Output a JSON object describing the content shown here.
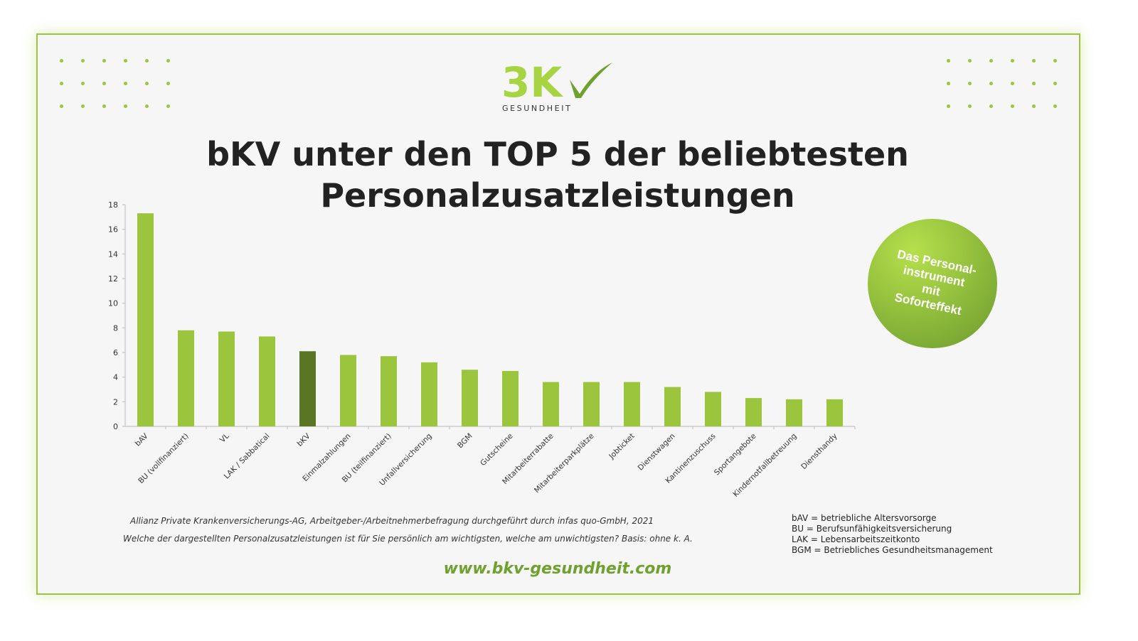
{
  "logo": {
    "text": "BKV",
    "subtitle": "GESUNDHEIT"
  },
  "title_line1": "bKV unter den TOP 5 der beliebtesten",
  "title_line2": "Personalzusatzleistungen",
  "badge": {
    "lines": [
      "Das Personal-",
      "instrument",
      "mit",
      "Soforteffekt"
    ]
  },
  "source": "Allianz Private Krankenversicherungs-AG, Arbeitgeber-/Arbeitnehmerbefragung durchgeführt durch infas quo-GmbH, 2021",
  "question": "Welche der dargestellten Personalzusatzleistungen ist für Sie persönlich am wichtigsten, welche am unwichtigsten? Basis: ohne k. A.",
  "abbreviations": [
    "bAV = betriebliche Altersvorsorge",
    "BU = Berufsunfähigkeitsversicherung",
    "LAK = Lebensarbeitszeitkonto",
    "BGM = Betriebliches Gesundheitsmanagement"
  ],
  "url": "www.bkv-gesundheit.com",
  "colors": {
    "bar": "#9bc53d",
    "highlight": "#5a7524",
    "accent": "#9bc53d"
  },
  "chart_data": {
    "type": "bar",
    "title": "",
    "xlabel": "",
    "ylabel": "",
    "ylim": [
      0,
      18
    ],
    "yticks": [
      0,
      2,
      4,
      6,
      8,
      10,
      12,
      14,
      16,
      18
    ],
    "categories": [
      "bAV",
      "BU (vollfinanziert)",
      "VL",
      "LAK / Sabbatical",
      "bKV",
      "Einmalzahlungen",
      "BU (teilfinanziert)",
      "Unfallversicherung",
      "BGM",
      "Gutscheine",
      "Mitarbeiterrabatte",
      "Mitarbeiterparkplätze",
      "Jobticket",
      "Dienstwagen",
      "Kantinenzuschuss",
      "Sportangebote",
      "Kindernotfallbetreuung",
      "Diensthandy"
    ],
    "values": [
      17.3,
      7.8,
      7.7,
      7.3,
      6.1,
      5.8,
      5.7,
      5.2,
      4.6,
      4.5,
      3.6,
      3.6,
      3.6,
      3.2,
      2.8,
      2.3,
      2.2,
      2.2
    ],
    "highlight": "bKV",
    "grid": false
  }
}
